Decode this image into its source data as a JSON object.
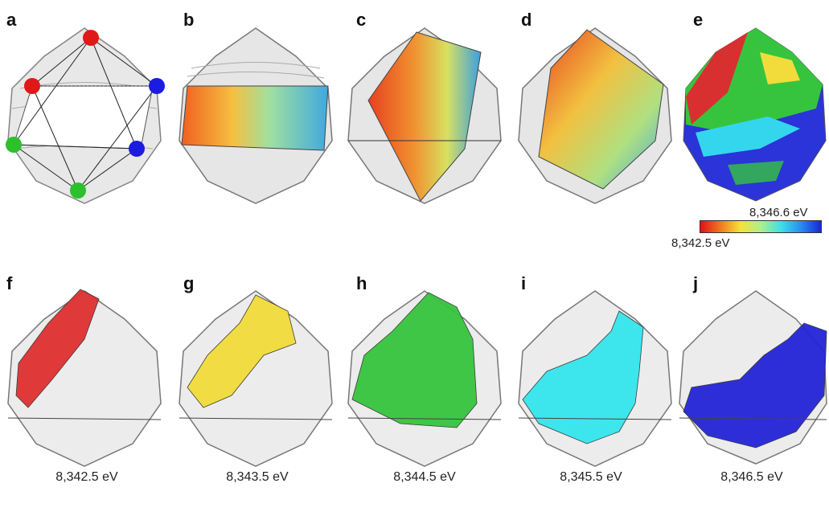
{
  "panels": {
    "a": {
      "label": "a"
    },
    "b": {
      "label": "b"
    },
    "c": {
      "label": "c"
    },
    "d": {
      "label": "d"
    },
    "e": {
      "label": "e"
    },
    "f": {
      "label": "f",
      "energy": "8,342.5 eV"
    },
    "g": {
      "label": "g",
      "energy": "8,343.5 eV"
    },
    "h": {
      "label": "h",
      "energy": "8,344.5 eV"
    },
    "i": {
      "label": "i",
      "energy": "8,345.5 eV"
    },
    "j": {
      "label": "j",
      "energy": "8,346.5 eV"
    }
  },
  "colorbar": {
    "min_label": "8,342.5 eV",
    "max_label": "8,346.6 eV",
    "colors": [
      "#e0101a",
      "#f07a1e",
      "#f5e23a",
      "#aef08a",
      "#3ee0e8",
      "#2a8cf0",
      "#1a28d8"
    ]
  },
  "iso_colors": {
    "f": "#e03030",
    "g": "#f2dc3c",
    "h": "#36c43e",
    "i": "#34e6ee",
    "j": "#2424d8"
  },
  "vertex_colors": [
    "#e01818",
    "#1c1ce0",
    "#1c1ce0",
    "#2cc02c",
    "#2cc02c",
    "#e01818"
  ]
}
